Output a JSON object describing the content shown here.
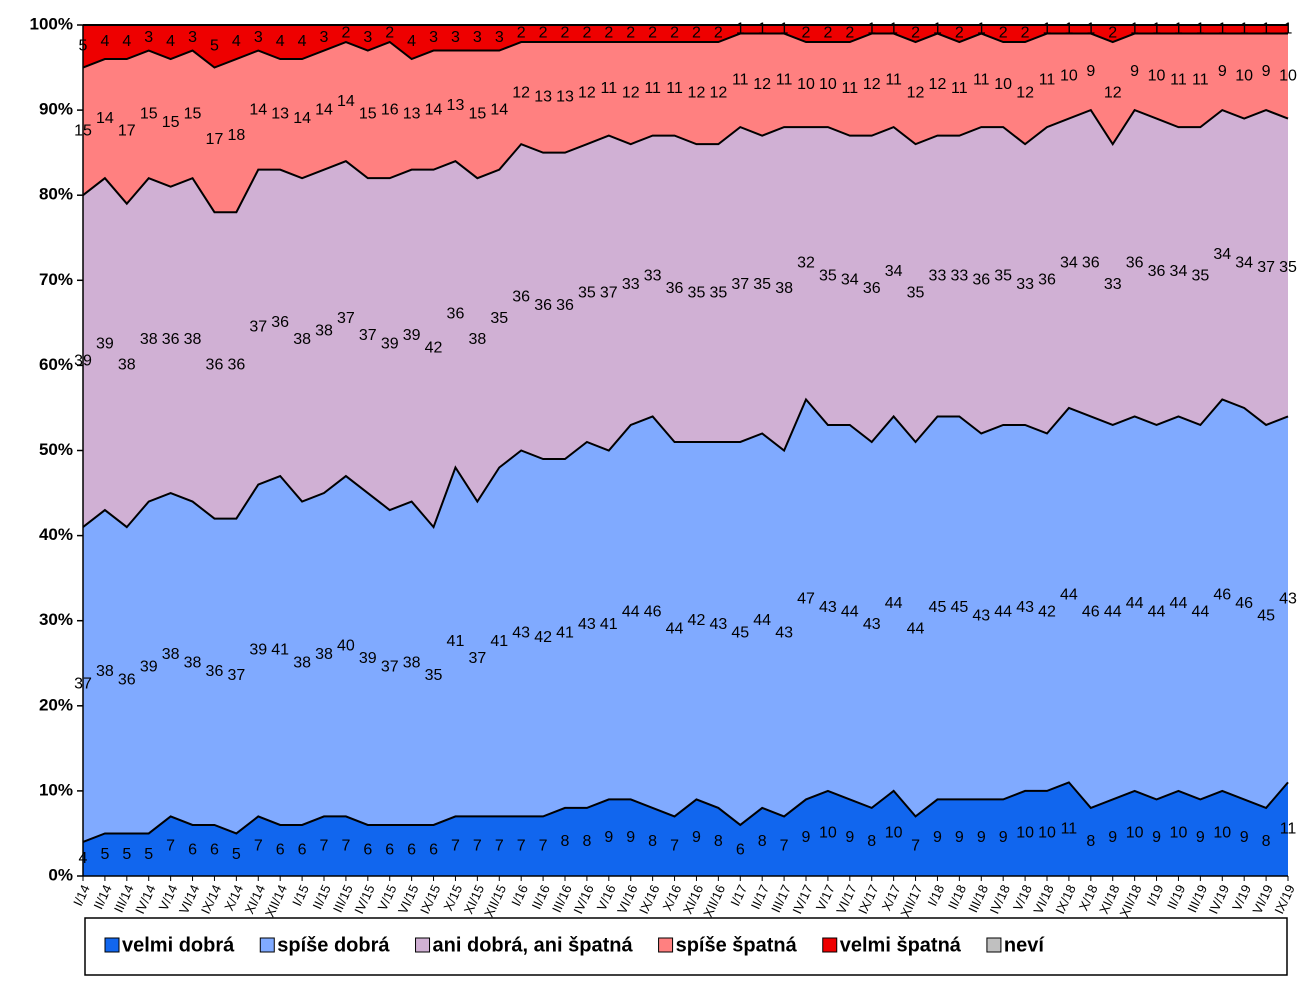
{
  "chart_data": {
    "type": "stacked-area",
    "categories": [
      "I/14",
      "II/14",
      "III/14",
      "IV/14",
      "V/14",
      "VI/14",
      "IX/14",
      "X/14",
      "XI/14",
      "XII/14",
      "I/15",
      "II/15",
      "III/15",
      "IV/15",
      "V/15",
      "VI/15",
      "IX/15",
      "X/15",
      "XI/15",
      "XII/15",
      "I/16",
      "II/16",
      "III/16",
      "IV/16",
      "V/16",
      "VI/16",
      "IX/16",
      "X/16",
      "XI/16",
      "XII/16",
      "I/17",
      "II/17",
      "III/17",
      "IV/17",
      "V/17",
      "VI/17",
      "IX/17",
      "X/17",
      "XII/17",
      "I/18",
      "II/18",
      "III/18",
      "IV/18",
      "V/18",
      "VI/18",
      "IX/18",
      "X/18",
      "XI/18",
      "XII/18",
      "I/19",
      "II/19",
      "III/19",
      "IV/19",
      "V/19",
      "VI/19",
      "IX/19"
    ],
    "series": [
      {
        "name": "velmi dobrá",
        "color": "#1166ee",
        "values": [
          4,
          5,
          5,
          5,
          7,
          6,
          6,
          5,
          7,
          6,
          6,
          7,
          7,
          6,
          6,
          6,
          6,
          7,
          7,
          7,
          7,
          7,
          8,
          8,
          9,
          9,
          8,
          7,
          9,
          8,
          6,
          8,
          7,
          9,
          10,
          9,
          8,
          10,
          7,
          9,
          9,
          9,
          9,
          10,
          10,
          11,
          8,
          9,
          10,
          9,
          10,
          9,
          10,
          9,
          8,
          11
        ]
      },
      {
        "name": "spíše dobrá",
        "color": "#80aaff",
        "values": [
          37,
          38,
          36,
          39,
          38,
          38,
          36,
          37,
          39,
          41,
          38,
          38,
          40,
          39,
          37,
          38,
          35,
          41,
          37,
          41,
          43,
          42,
          41,
          43,
          41,
          44,
          46,
          44,
          42,
          43,
          45,
          44,
          43,
          47,
          43,
          44,
          43,
          44,
          44,
          45,
          45,
          43,
          44,
          43,
          42,
          44,
          46,
          44,
          44,
          44,
          44,
          44,
          46,
          46,
          45,
          43
        ]
      },
      {
        "name": "ani dobrá, ani špatná",
        "color": "#d0b0d4",
        "values": [
          39,
          39,
          38,
          38,
          36,
          38,
          36,
          36,
          37,
          36,
          38,
          38,
          37,
          37,
          39,
          39,
          42,
          36,
          38,
          35,
          36,
          36,
          36,
          35,
          37,
          33,
          33,
          36,
          35,
          35,
          37,
          35,
          38,
          32,
          35,
          34,
          36,
          34,
          35,
          33,
          33,
          36,
          35,
          33,
          36,
          34,
          36,
          33,
          36,
          36,
          34,
          35,
          34,
          34,
          37,
          35
        ]
      },
      {
        "name": "spíše špatná",
        "color": "#ff8080",
        "values": [
          15,
          14,
          17,
          15,
          15,
          15,
          17,
          18,
          14,
          13,
          14,
          14,
          14,
          15,
          16,
          13,
          14,
          13,
          15,
          14,
          12,
          13,
          13,
          12,
          11,
          12,
          11,
          11,
          12,
          12,
          11,
          12,
          11,
          10,
          10,
          11,
          12,
          11,
          12,
          12,
          11,
          11,
          10,
          12,
          11,
          10,
          9,
          12,
          9,
          10,
          11,
          11,
          9,
          10,
          9,
          10
        ]
      },
      {
        "name": "velmi špatná",
        "color": "#ee0000",
        "values": [
          5,
          4,
          4,
          3,
          4,
          3,
          5,
          4,
          3,
          4,
          4,
          3,
          2,
          3,
          2,
          4,
          3,
          3,
          3,
          3,
          2,
          2,
          2,
          2,
          2,
          2,
          2,
          2,
          2,
          2,
          1,
          1,
          1,
          2,
          2,
          2,
          1,
          1,
          2,
          1,
          2,
          1,
          2,
          2,
          1,
          1,
          1,
          2,
          1,
          1,
          1,
          1,
          1,
          1,
          1,
          1
        ]
      },
      {
        "name": "neví",
        "color": "#c0c0c0",
        "values": [
          0,
          0,
          0,
          0,
          0,
          0,
          0,
          0,
          0,
          0,
          0,
          0,
          0,
          0,
          0,
          0,
          0,
          0,
          0,
          0,
          0,
          0,
          0,
          0,
          0,
          0,
          0,
          0,
          0,
          0,
          0,
          0,
          0,
          0,
          0,
          0,
          0,
          0,
          0,
          0,
          0,
          0,
          0,
          0,
          0,
          0,
          0,
          0,
          0,
          0,
          0,
          0,
          0,
          0,
          0,
          0
        ]
      }
    ],
    "ylim": [
      0,
      100
    ],
    "yticks": [
      {
        "value": 0,
        "label": "0%"
      },
      {
        "value": 10,
        "label": "10%"
      },
      {
        "value": 20,
        "label": "20%"
      },
      {
        "value": 30,
        "label": "30%"
      },
      {
        "value": 40,
        "label": "40%"
      },
      {
        "value": 50,
        "label": "50%"
      },
      {
        "value": 60,
        "label": "60%"
      },
      {
        "value": 70,
        "label": "70%"
      },
      {
        "value": 80,
        "label": "80%"
      },
      {
        "value": 90,
        "label": "90%"
      },
      {
        "value": 100,
        "label": "100%"
      }
    ],
    "legend": "bottom"
  }
}
